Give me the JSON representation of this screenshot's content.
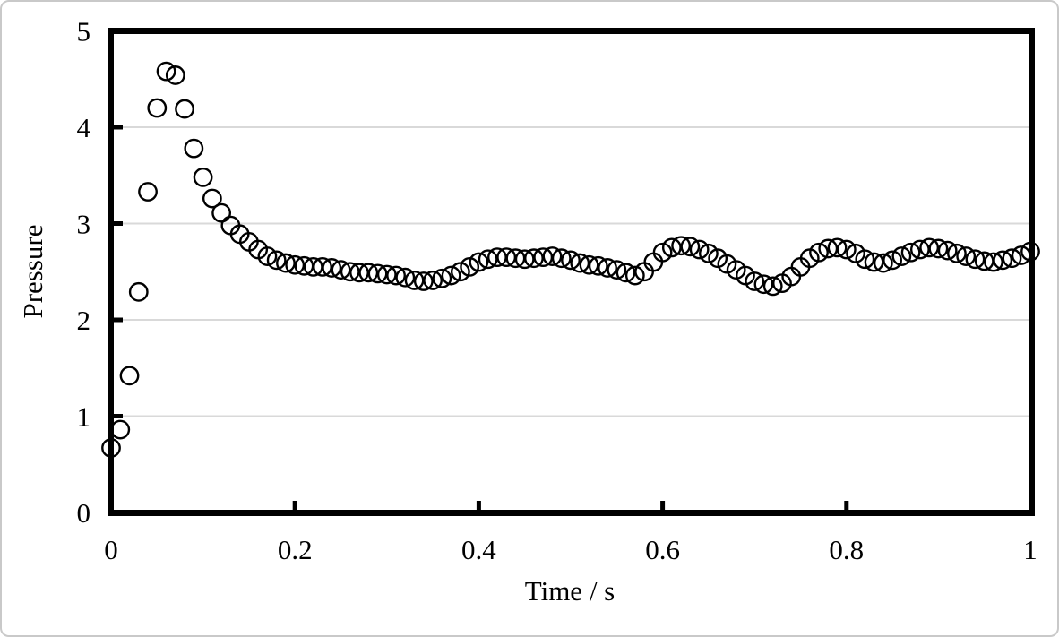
{
  "page": {
    "background": "#ffffff",
    "border_color": "#c9c9c9"
  },
  "chart_data": {
    "type": "scatter",
    "title": "",
    "xlabel": "Time / s",
    "ylabel": "Pressure",
    "xlim": [
      0,
      1
    ],
    "ylim": [
      0,
      5
    ],
    "x_tick_values": [
      0,
      0.2,
      0.4,
      0.6,
      0.8,
      1
    ],
    "x_tick_labels": [
      "0",
      "0.2",
      "0.4",
      "0.6",
      "0.8",
      "1"
    ],
    "y_tick_values": [
      0,
      1,
      2,
      3,
      4,
      5
    ],
    "y_tick_labels": [
      "0",
      "1",
      "2",
      "3",
      "4",
      "5"
    ],
    "grid": "horizontal-only",
    "legend_position": "none",
    "gridline_color": "#d9d9d9",
    "axis_color": "#000000",
    "marker": {
      "shape": "open-circle",
      "color": "#000000",
      "fill": "none",
      "radius_px": 9.7,
      "stroke_px": 2.4
    },
    "series": [
      {
        "name": "Pressure",
        "x": [
          0.0,
          0.01,
          0.02,
          0.03,
          0.04,
          0.05,
          0.06,
          0.07,
          0.08,
          0.09,
          0.1,
          0.11,
          0.12,
          0.13,
          0.14,
          0.15,
          0.16,
          0.17,
          0.18,
          0.19,
          0.2,
          0.21,
          0.22,
          0.23,
          0.24,
          0.25,
          0.26,
          0.27,
          0.28,
          0.29,
          0.3,
          0.31,
          0.32,
          0.33,
          0.34,
          0.35,
          0.36,
          0.37,
          0.38,
          0.39,
          0.4,
          0.41,
          0.42,
          0.43,
          0.44,
          0.45,
          0.46,
          0.47,
          0.48,
          0.49,
          0.5,
          0.51,
          0.52,
          0.53,
          0.54,
          0.55,
          0.56,
          0.57,
          0.58,
          0.59,
          0.6,
          0.61,
          0.62,
          0.63,
          0.64,
          0.65,
          0.66,
          0.67,
          0.68,
          0.69,
          0.7,
          0.71,
          0.72,
          0.73,
          0.74,
          0.75,
          0.76,
          0.77,
          0.78,
          0.79,
          0.8,
          0.81,
          0.82,
          0.83,
          0.84,
          0.85,
          0.86,
          0.87,
          0.88,
          0.89,
          0.9,
          0.91,
          0.92,
          0.93,
          0.94,
          0.95,
          0.96,
          0.97,
          0.98,
          0.99,
          1.0
        ],
        "y": [
          0.67,
          0.86,
          1.42,
          2.29,
          3.33,
          4.2,
          4.58,
          4.54,
          4.19,
          3.78,
          3.48,
          3.26,
          3.11,
          2.98,
          2.89,
          2.81,
          2.73,
          2.66,
          2.62,
          2.59,
          2.57,
          2.56,
          2.55,
          2.55,
          2.54,
          2.52,
          2.5,
          2.49,
          2.49,
          2.48,
          2.47,
          2.46,
          2.44,
          2.41,
          2.4,
          2.41,
          2.43,
          2.46,
          2.5,
          2.55,
          2.6,
          2.63,
          2.65,
          2.65,
          2.64,
          2.63,
          2.64,
          2.65,
          2.66,
          2.64,
          2.62,
          2.59,
          2.57,
          2.56,
          2.54,
          2.52,
          2.49,
          2.46,
          2.5,
          2.6,
          2.7,
          2.75,
          2.77,
          2.76,
          2.73,
          2.69,
          2.64,
          2.58,
          2.52,
          2.46,
          2.4,
          2.37,
          2.35,
          2.38,
          2.45,
          2.55,
          2.64,
          2.7,
          2.74,
          2.75,
          2.73,
          2.69,
          2.63,
          2.6,
          2.59,
          2.62,
          2.66,
          2.7,
          2.73,
          2.75,
          2.74,
          2.72,
          2.69,
          2.66,
          2.63,
          2.61,
          2.6,
          2.62,
          2.64,
          2.67,
          2.71
        ]
      }
    ]
  }
}
